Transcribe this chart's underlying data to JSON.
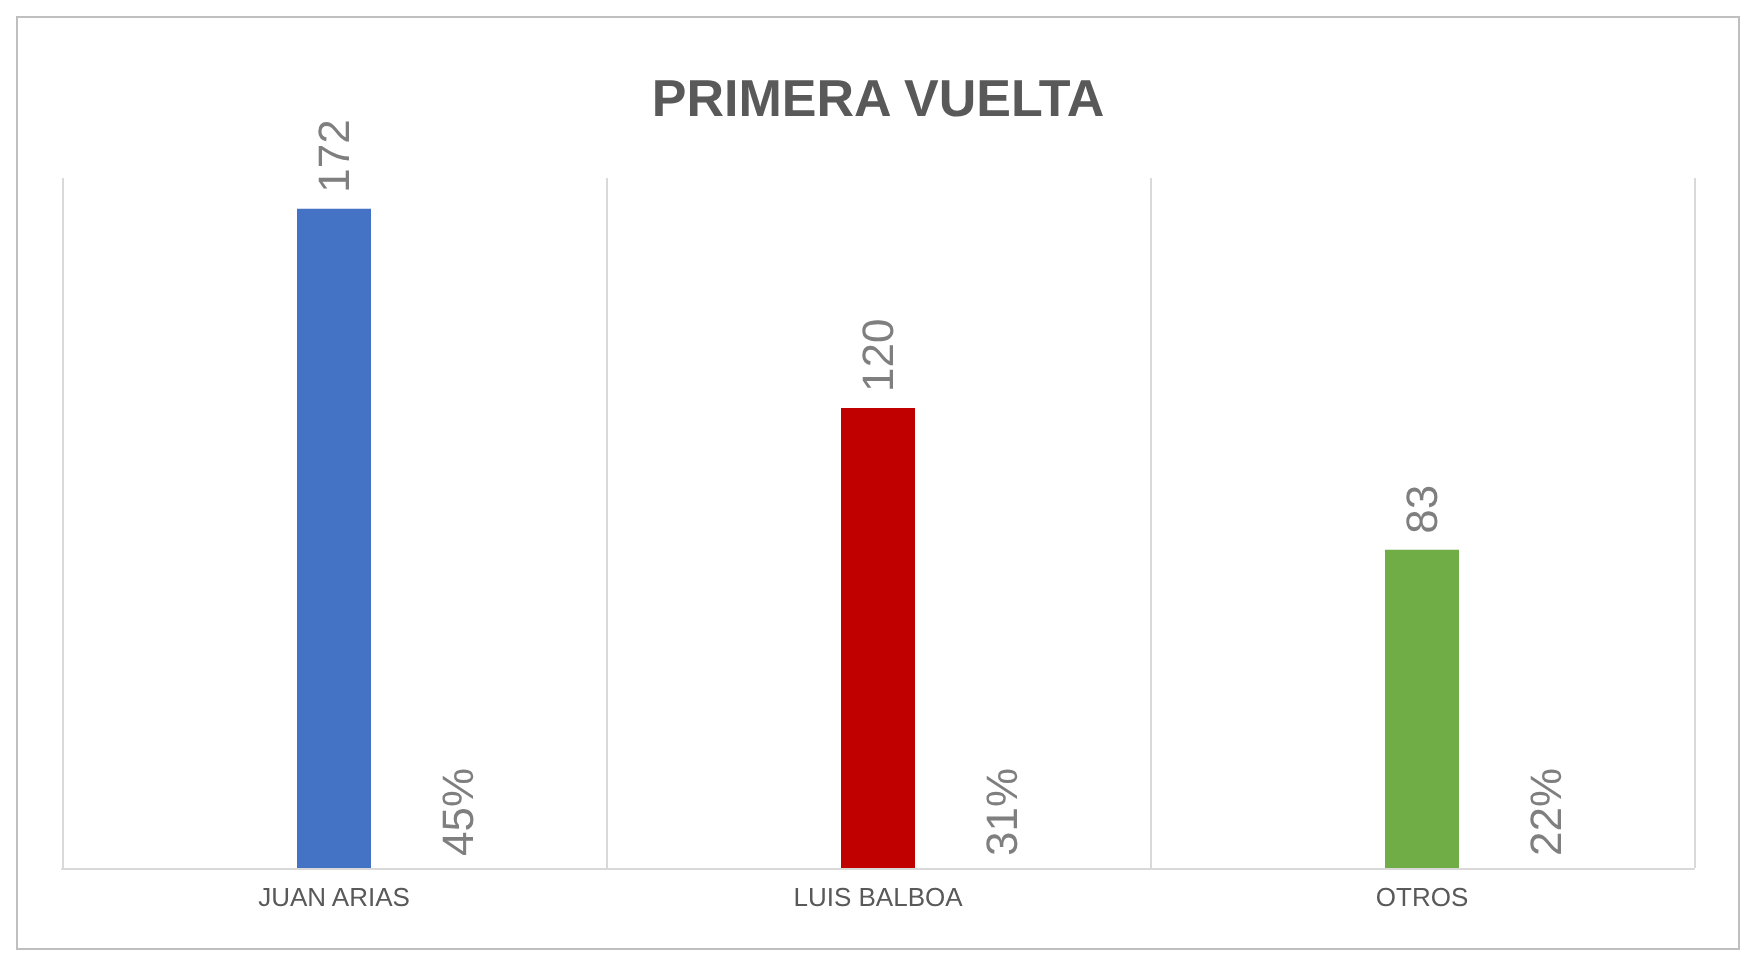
{
  "chart_data": {
    "type": "bar",
    "title": "PRIMERA VUELTA",
    "categories": [
      "JUAN ARIAS",
      "LUIS BALBOA",
      "OTROS"
    ],
    "values": [
      172,
      120,
      83
    ],
    "colors": [
      "#4472c4",
      "#c00000",
      "#70ad47"
    ],
    "data_labels": true,
    "grid": "x",
    "annotations": [
      {
        "text": "45%",
        "x": "JUAN ARIAS",
        "y": 0
      },
      {
        "text": "31%",
        "x": "LUIS BALBOA",
        "y": 0
      },
      {
        "text": "22%",
        "x": "OTROS",
        "y": 0
      }
    ]
  }
}
